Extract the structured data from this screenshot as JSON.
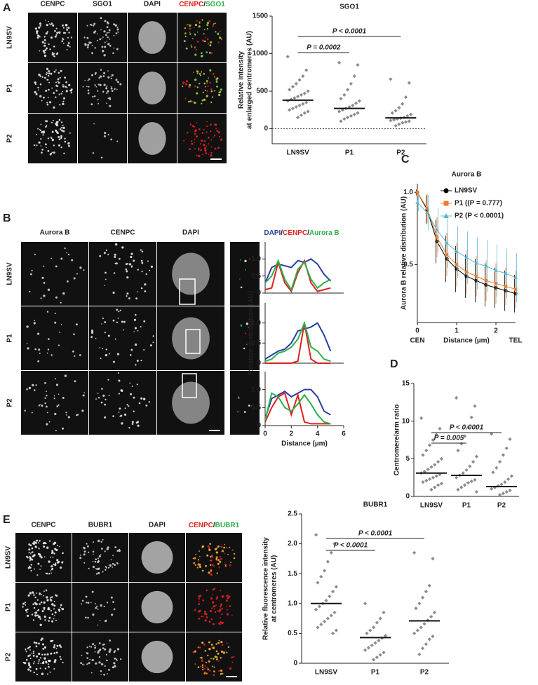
{
  "panels": {
    "A": {
      "letter": "A",
      "columns": [
        "CENPC",
        "SGO1",
        "DAPI"
      ],
      "merge": [
        "CENPC",
        "/",
        "SGO1"
      ],
      "rows": [
        "LN9SV",
        "P1",
        "P2"
      ]
    },
    "B": {
      "letter": "B",
      "columns": [
        "Aurora B",
        "CENPC",
        "DAPI"
      ],
      "rows": [
        "LN9SV",
        "P1",
        "P2"
      ],
      "profile_legend": [
        "DAPI",
        "/",
        "CENPC",
        "/",
        "Aurora B"
      ]
    },
    "C": {
      "letter": "C"
    },
    "D": {
      "letter": "D"
    },
    "E": {
      "letter": "E",
      "columns": [
        "CENPC",
        "BUBR1",
        "DAPI"
      ],
      "merge": [
        "CENPC",
        "/",
        "BUBR1"
      ],
      "rows": [
        "LN9SV",
        "P1",
        "P2"
      ]
    }
  },
  "chart_data": [
    {
      "type": "dot",
      "title": "SGO1",
      "ylabel": [
        "Relative intensity",
        "at enlarged centromeres (AU)"
      ],
      "categories": [
        "LN9SV",
        "P1",
        "P2"
      ],
      "color": "#8c8c8c",
      "values": [
        [
          960,
          780,
          700,
          650,
          600,
          560,
          520,
          500,
          470,
          450,
          430,
          410,
          390,
          370,
          350,
          330,
          310,
          290,
          270,
          250,
          230,
          210,
          180,
          150
        ],
        [
          880,
          850,
          700,
          600,
          520,
          450,
          400,
          370,
          340,
          310,
          290,
          270,
          250,
          230,
          210,
          190,
          170,
          150,
          130,
          100
        ],
        [
          660,
          610,
          420,
          330,
          280,
          240,
          210,
          190,
          170,
          150,
          140,
          130,
          120,
          110,
          100,
          90,
          80,
          60,
          40
        ]
      ],
      "means": [
        380,
        270,
        145
      ],
      "zero_line": true,
      "comparisons": [
        "P = 0.0002",
        "P < 0.0001"
      ],
      "ylim": [
        -200,
        1500
      ],
      "yticks": [
        0,
        500,
        1000,
        1500
      ]
    },
    {
      "type": "line",
      "x": [
        0,
        0.5,
        1,
        1.5,
        2,
        2.5,
        3,
        3.5,
        4,
        4.5,
        5
      ],
      "xlim": [
        0,
        6
      ],
      "ylim": [
        0,
        1.5
      ],
      "yticks": [
        0,
        0.5,
        {
          "value": 1,
          "label": "1.0"
        }
      ],
      "series": [
        {
          "color": "#2b3ea0",
          "values": [
            0.3,
            0.75,
            0.85,
            0.8,
            0.75,
            0.95,
            0.9,
            1.0,
            0.85,
            0.55,
            0.35
          ]
        },
        {
          "color": "#e02020",
          "values": [
            0.1,
            0.15,
            0.9,
            0.3,
            0.05,
            0.6,
            0.95,
            0.3,
            0.05,
            0.1,
            0.15
          ]
        },
        {
          "color": "#2bb24b",
          "values": [
            0.3,
            0.5,
            0.95,
            0.4,
            0.1,
            0.7,
            0.9,
            0.4,
            0.15,
            0.3,
            0.4
          ]
        }
      ]
    },
    {
      "type": "line",
      "x": [
        0,
        0.5,
        1,
        1.5,
        2,
        2.5,
        3,
        3.5,
        4,
        4.5,
        5
      ],
      "xlim": [
        0,
        6
      ],
      "ylim": [
        0,
        1.5
      ],
      "yticks": [
        0,
        0.5,
        {
          "value": 1,
          "label": "1.0"
        }
      ],
      "ylabel": [
        "Relative distribution (AU)"
      ],
      "series": [
        {
          "color": "#2b3ea0",
          "values": [
            0.1,
            0.2,
            0.3,
            0.35,
            0.5,
            0.8,
            0.85,
            0.9,
            1.0,
            0.7,
            0.3
          ]
        },
        {
          "color": "#e02020",
          "values": [
            0,
            0,
            0,
            0,
            0,
            0.05,
            1.0,
            0.1,
            0,
            0,
            0
          ]
        },
        {
          "color": "#2bb24b",
          "values": [
            0.05,
            0.1,
            0.25,
            0.3,
            0.4,
            0.6,
            1.0,
            0.4,
            0.3,
            0.1,
            0.05
          ]
        }
      ]
    },
    {
      "type": "line",
      "x": [
        0,
        0.5,
        1,
        1.5,
        2,
        2.5,
        3,
        3.5,
        4,
        4.5,
        5
      ],
      "xlim": [
        0,
        6
      ],
      "ylim": [
        0,
        1.5
      ],
      "yticks": [
        0,
        0.5,
        {
          "value": 1,
          "label": "1.0"
        }
      ],
      "xticks": [
        0,
        2,
        4,
        6
      ],
      "xlabel": "Distance (µm)",
      "series": [
        {
          "color": "#2b3ea0",
          "values": [
            0.2,
            0.75,
            0.85,
            0.95,
            0.8,
            0.9,
            1.0,
            1.0,
            0.8,
            0.4,
            0.3
          ]
        },
        {
          "color": "#e02020",
          "values": [
            0.1,
            0.5,
            0.8,
            0.9,
            0.3,
            0.85,
            0.1,
            0.05,
            0.05,
            0.05,
            0.05
          ]
        },
        {
          "color": "#2bb24b",
          "values": [
            0.15,
            0.9,
            0.8,
            0.5,
            0.4,
            0.6,
            0.85,
            0.6,
            0.3,
            0.1,
            0.05
          ]
        }
      ]
    },
    {
      "type": "line",
      "title": "Aurora B",
      "ylabel": [
        "Aurora B relative distribution (AU)"
      ],
      "xlabel": "Distance (µm)",
      "end_labels": [
        "CEN",
        "TEL"
      ],
      "x": [
        0,
        0.25,
        0.5,
        0.75,
        1,
        1.25,
        1.5,
        1.75,
        2,
        2.25,
        2.5
      ],
      "xlim": [
        0,
        2.5
      ],
      "xticks": [
        0,
        1,
        2
      ],
      "ylim": [
        0.1,
        1.06
      ],
      "yticks": [
        0.5,
        {
          "value": 1,
          "label": "1.0"
        }
      ],
      "legend": true,
      "series": [
        {
          "name": "LN9SV",
          "color": "#000000",
          "marker": "circle",
          "values": [
            1.0,
            0.88,
            0.66,
            0.54,
            0.47,
            0.42,
            0.39,
            0.36,
            0.34,
            0.32,
            0.3
          ],
          "errors": [
            0.02,
            0.1,
            0.15,
            0.16,
            0.16,
            0.15,
            0.15,
            0.15,
            0.14,
            0.14,
            0.13
          ]
        },
        {
          "name": "P1 ((P = 0.777)",
          "color": "#f07a2e",
          "marker": "square",
          "values": [
            1.0,
            0.89,
            0.69,
            0.57,
            0.5,
            0.45,
            0.42,
            0.39,
            0.37,
            0.35,
            0.33
          ],
          "errors": [
            0.02,
            0.1,
            0.14,
            0.15,
            0.15,
            0.15,
            0.14,
            0.14,
            0.14,
            0.13,
            0.13
          ]
        },
        {
          "name": "P2 (P < 0.0001)",
          "color": "#5fb8d6",
          "marker": "triangle",
          "values": [
            0.93,
            0.86,
            0.74,
            0.65,
            0.59,
            0.55,
            0.51,
            0.49,
            0.46,
            0.44,
            0.41
          ],
          "errors": [
            0.06,
            0.12,
            0.15,
            0.17,
            0.18,
            0.18,
            0.18,
            0.18,
            0.18,
            0.17,
            0.17
          ]
        }
      ]
    },
    {
      "type": "dot",
      "ylabel": [
        "Centromere/arm ratio"
      ],
      "categories": [
        "LN9SV",
        "P1",
        "P2"
      ],
      "color": "#8c8c8c",
      "values": [
        [
          10.4,
          9,
          8.2,
          7.5,
          6.8,
          6.1,
          5.5,
          5,
          4.6,
          4.2,
          3.9,
          3.6,
          3.3,
          3.1,
          2.9,
          2.7,
          2.5,
          2.3,
          2.1,
          1.9,
          1.7,
          1.5,
          1.2,
          0.9
        ],
        [
          13.1,
          12,
          10.5,
          9.2,
          8,
          7,
          6.1,
          5.3,
          4.6,
          4,
          3.5,
          3.1,
          2.8,
          2.5,
          2.2,
          2,
          1.8,
          1.5,
          1.2,
          0.9,
          0.6
        ],
        [
          8.3,
          7.6,
          6.4,
          5.5,
          4.6,
          3.8,
          3.2,
          2.7,
          2.3,
          1.9,
          1.6,
          1.4,
          1.2,
          1,
          0.8,
          0.6,
          0.4,
          0.2
        ]
      ],
      "means": [
        3.1,
        2.8,
        1.3
      ],
      "comparisons": [
        "P = 0.005",
        "P < 0.0001"
      ],
      "ylim": [
        0,
        15
      ],
      "yticks": [
        0,
        5,
        10,
        15
      ]
    },
    {
      "type": "dot",
      "title": "BUBR1",
      "ylabel": [
        "Relative fluorescence intensity",
        "at centromeres (AU)"
      ],
      "categories": [
        "LN9SV",
        "P1",
        "P2"
      ],
      "color": "#8c8c8c",
      "values": [
        [
          2.15,
          2.0,
          1.85,
          1.7,
          1.55,
          1.45,
          1.35,
          1.28,
          1.2,
          1.12,
          1.05,
          1.0,
          0.95,
          0.9,
          0.85,
          0.8,
          0.75,
          0.7,
          0.65,
          0.6,
          0.55,
          0.5
        ],
        [
          1.0,
          0.85,
          0.75,
          0.68,
          0.6,
          0.55,
          0.5,
          0.46,
          0.42,
          0.38,
          0.34,
          0.3,
          0.26,
          0.22,
          0.18,
          0.14,
          0.1,
          0.06
        ],
        [
          1.85,
          1.75,
          1.3,
          1.2,
          1.1,
          1.0,
          0.92,
          0.85,
          0.78,
          0.72,
          0.66,
          0.6,
          0.55,
          0.5,
          0.45,
          0.4,
          0.32,
          0.25,
          0.15
        ]
      ],
      "means": [
        1.0,
        0.43,
        0.71
      ],
      "comparisons": [
        "P < 0.0001",
        "P < 0.0001"
      ],
      "ylim": [
        0,
        2.5
      ],
      "yticks": [
        0,
        0.5,
        {
          "value": 1,
          "label": "1.0"
        },
        1.5,
        {
          "value": 2,
          "label": "2.0"
        },
        2.5
      ]
    }
  ]
}
